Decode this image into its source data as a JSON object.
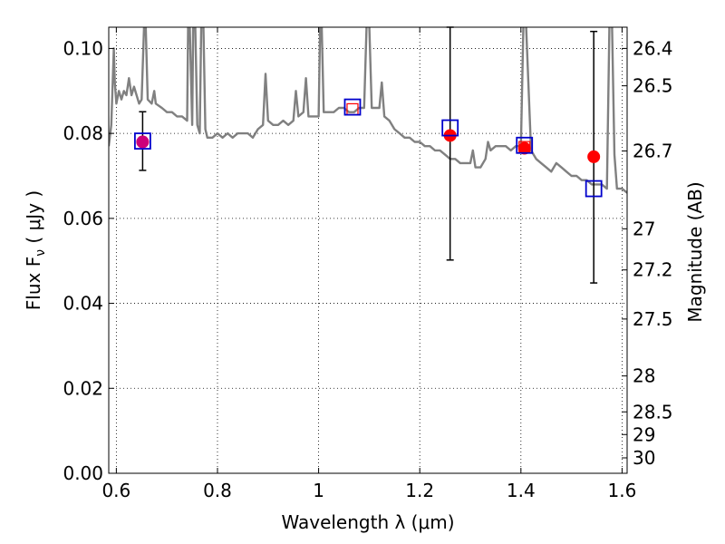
{
  "chart_data": {
    "type": "scatter",
    "xlabel": "Wavelength  λ (μm)",
    "ylabel_left": "Flux  F",
    "ylabel_sub": "ν",
    "ylabel_unit": " ( μJy )",
    "ylabel_right": "Magnitude (AB)",
    "xlim": [
      0.585,
      1.61
    ],
    "ylim": [
      0.0,
      0.105
    ],
    "grid": true,
    "x_ticks": [
      {
        "value": 0.6,
        "label": "0.6"
      },
      {
        "value": 0.8,
        "label": "0.8"
      },
      {
        "value": 1.0,
        "label": "1"
      },
      {
        "value": 1.2,
        "label": "1.2"
      },
      {
        "value": 1.4,
        "label": "1.4"
      },
      {
        "value": 1.6,
        "label": "1.6"
      }
    ],
    "y_ticks": [
      {
        "value": 0.0,
        "label": "0.00"
      },
      {
        "value": 0.02,
        "label": "0.02"
      },
      {
        "value": 0.04,
        "label": "0.04"
      },
      {
        "value": 0.06,
        "label": "0.06"
      },
      {
        "value": 0.08,
        "label": "0.08"
      },
      {
        "value": 0.1,
        "label": "0.10"
      }
    ],
    "mag_ticks": [
      {
        "value": 26.4,
        "label": "26.4"
      },
      {
        "value": 26.5,
        "label": "26.5"
      },
      {
        "value": 26.7,
        "label": "26.7"
      },
      {
        "value": 27.0,
        "label": "27"
      },
      {
        "value": 27.2,
        "label": "27.2"
      },
      {
        "value": 27.5,
        "label": "27.5"
      },
      {
        "value": 28.0,
        "label": "28"
      },
      {
        "value": 28.5,
        "label": "28.5"
      },
      {
        "value": 29.0,
        "label": "29"
      },
      {
        "value": 30.0,
        "label": "30"
      }
    ],
    "model_spectrum": {
      "color": "#808080",
      "points": [
        [
          0.585,
          0.077
        ],
        [
          0.59,
          0.082
        ],
        [
          0.595,
          0.1
        ],
        [
          0.597,
          0.092
        ],
        [
          0.6,
          0.087
        ],
        [
          0.605,
          0.09
        ],
        [
          0.61,
          0.088
        ],
        [
          0.615,
          0.09
        ],
        [
          0.62,
          0.089
        ],
        [
          0.625,
          0.093
        ],
        [
          0.63,
          0.089
        ],
        [
          0.635,
          0.091
        ],
        [
          0.64,
          0.089
        ],
        [
          0.645,
          0.087
        ],
        [
          0.65,
          0.088
        ],
        [
          0.655,
          0.106
        ],
        [
          0.658,
          0.106
        ],
        [
          0.662,
          0.088
        ],
        [
          0.67,
          0.087
        ],
        [
          0.675,
          0.09
        ],
        [
          0.678,
          0.087
        ],
        [
          0.69,
          0.086
        ],
        [
          0.7,
          0.085
        ],
        [
          0.71,
          0.085
        ],
        [
          0.72,
          0.084
        ],
        [
          0.73,
          0.084
        ],
        [
          0.74,
          0.083
        ],
        [
          0.742,
          0.106
        ],
        [
          0.745,
          0.106
        ],
        [
          0.75,
          0.082
        ],
        [
          0.752,
          0.106
        ],
        [
          0.756,
          0.106
        ],
        [
          0.76,
          0.082
        ],
        [
          0.765,
          0.08
        ],
        [
          0.768,
          0.106
        ],
        [
          0.772,
          0.106
        ],
        [
          0.776,
          0.081
        ],
        [
          0.78,
          0.079
        ],
        [
          0.79,
          0.079
        ],
        [
          0.8,
          0.08
        ],
        [
          0.81,
          0.079
        ],
        [
          0.82,
          0.08
        ],
        [
          0.83,
          0.079
        ],
        [
          0.84,
          0.08
        ],
        [
          0.85,
          0.08
        ],
        [
          0.86,
          0.08
        ],
        [
          0.87,
          0.079
        ],
        [
          0.88,
          0.081
        ],
        [
          0.89,
          0.082
        ],
        [
          0.895,
          0.094
        ],
        [
          0.9,
          0.083
        ],
        [
          0.91,
          0.082
        ],
        [
          0.92,
          0.082
        ],
        [
          0.93,
          0.083
        ],
        [
          0.94,
          0.082
        ],
        [
          0.95,
          0.083
        ],
        [
          0.955,
          0.09
        ],
        [
          0.96,
          0.084
        ],
        [
          0.97,
          0.085
        ],
        [
          0.975,
          0.093
        ],
        [
          0.98,
          0.084
        ],
        [
          0.99,
          0.084
        ],
        [
          1.0,
          0.084
        ],
        [
          1.003,
          0.106
        ],
        [
          1.006,
          0.106
        ],
        [
          1.01,
          0.085
        ],
        [
          1.02,
          0.085
        ],
        [
          1.03,
          0.085
        ],
        [
          1.04,
          0.086
        ],
        [
          1.05,
          0.086
        ],
        [
          1.06,
          0.085
        ],
        [
          1.07,
          0.085
        ],
        [
          1.08,
          0.086
        ],
        [
          1.09,
          0.086
        ],
        [
          1.095,
          0.106
        ],
        [
          1.1,
          0.106
        ],
        [
          1.105,
          0.086
        ],
        [
          1.11,
          0.086
        ],
        [
          1.12,
          0.086
        ],
        [
          1.125,
          0.092
        ],
        [
          1.13,
          0.084
        ],
        [
          1.14,
          0.083
        ],
        [
          1.15,
          0.081
        ],
        [
          1.16,
          0.08
        ],
        [
          1.17,
          0.079
        ],
        [
          1.18,
          0.079
        ],
        [
          1.19,
          0.078
        ],
        [
          1.2,
          0.078
        ],
        [
          1.21,
          0.077
        ],
        [
          1.22,
          0.077
        ],
        [
          1.23,
          0.076
        ],
        [
          1.24,
          0.076
        ],
        [
          1.25,
          0.075
        ],
        [
          1.26,
          0.074
        ],
        [
          1.27,
          0.074
        ],
        [
          1.28,
          0.073
        ],
        [
          1.29,
          0.073
        ],
        [
          1.3,
          0.073
        ],
        [
          1.305,
          0.076
        ],
        [
          1.31,
          0.072
        ],
        [
          1.32,
          0.072
        ],
        [
          1.33,
          0.074
        ],
        [
          1.335,
          0.078
        ],
        [
          1.34,
          0.076
        ],
        [
          1.35,
          0.077
        ],
        [
          1.36,
          0.077
        ],
        [
          1.37,
          0.077
        ],
        [
          1.38,
          0.076
        ],
        [
          1.39,
          0.077
        ],
        [
          1.4,
          0.077
        ],
        [
          1.405,
          0.106
        ],
        [
          1.41,
          0.106
        ],
        [
          1.42,
          0.076
        ],
        [
          1.43,
          0.074
        ],
        [
          1.44,
          0.073
        ],
        [
          1.45,
          0.072
        ],
        [
          1.46,
          0.071
        ],
        [
          1.47,
          0.073
        ],
        [
          1.48,
          0.072
        ],
        [
          1.49,
          0.071
        ],
        [
          1.5,
          0.07
        ],
        [
          1.51,
          0.07
        ],
        [
          1.52,
          0.069
        ],
        [
          1.53,
          0.069
        ],
        [
          1.54,
          0.068
        ],
        [
          1.55,
          0.068
        ],
        [
          1.56,
          0.068
        ],
        [
          1.57,
          0.067
        ],
        [
          1.575,
          0.106
        ],
        [
          1.58,
          0.106
        ],
        [
          1.585,
          0.075
        ],
        [
          1.59,
          0.067
        ],
        [
          1.6,
          0.067
        ],
        [
          1.61,
          0.066
        ]
      ]
    },
    "observed": [
      {
        "x": 0.652,
        "y": 0.078,
        "yerr_low": 0.0713,
        "yerr_high": 0.0851
      },
      {
        "x": 1.26,
        "y": 0.0795,
        "yerr_low": 0.0502,
        "yerr_high": 0.1058
      },
      {
        "x": 1.407,
        "y": 0.0765,
        "yerr_low": null,
        "yerr_high": null
      },
      {
        "x": 1.544,
        "y": 0.0745,
        "yerr_low": 0.0448,
        "yerr_high": 0.104
      }
    ],
    "observed_color": "#ff0000",
    "errorbar_color": "#000000",
    "model_photometry_blue": [
      {
        "x": 0.652,
        "y": 0.0782
      },
      {
        "x": 1.067,
        "y": 0.0862
      },
      {
        "x": 1.26,
        "y": 0.0813
      },
      {
        "x": 1.407,
        "y": 0.0772
      },
      {
        "x": 1.544,
        "y": 0.067
      }
    ],
    "model_photometry_red": [
      {
        "x": 1.067,
        "y": 0.0857
      },
      {
        "x": 1.407,
        "y": 0.0768
      }
    ],
    "blue_color": "#0000cc",
    "red_square_color": "#ff0000"
  }
}
